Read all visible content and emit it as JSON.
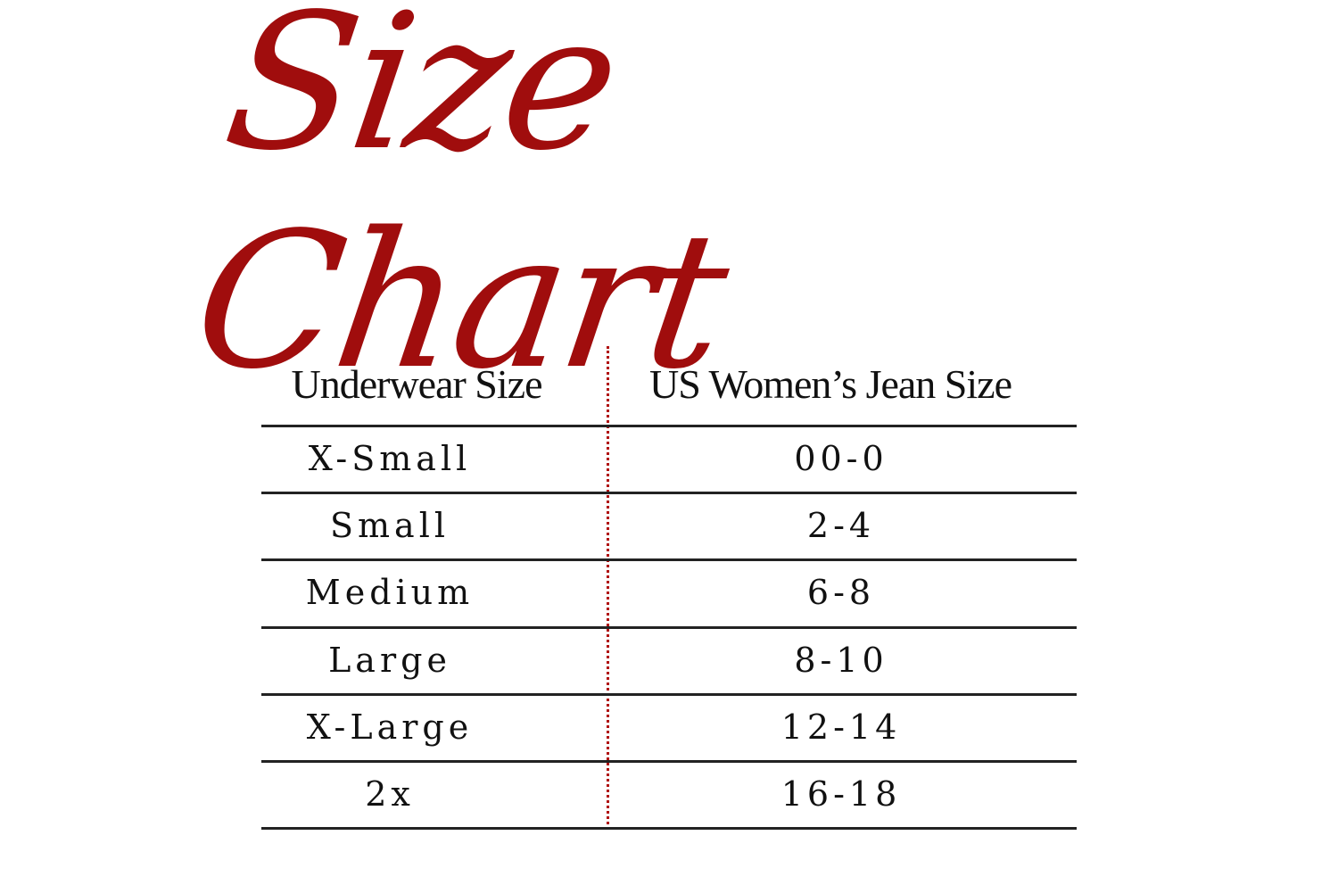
{
  "title": "Size Chart",
  "colors": {
    "accent": "#a00d0d",
    "text": "#111111",
    "rule": "#222222"
  },
  "table": {
    "headers": [
      "Underwear Size",
      "US Women’s Jean Size"
    ],
    "rows": [
      {
        "underwear": "X-Small",
        "jean": "00-0"
      },
      {
        "underwear": "Small",
        "jean": "2-4"
      },
      {
        "underwear": "Medium",
        "jean": "6-8"
      },
      {
        "underwear": "Large",
        "jean": "8-10"
      },
      {
        "underwear": "X-Large",
        "jean": "12-14"
      },
      {
        "underwear": "2x",
        "jean": "16-18"
      }
    ]
  }
}
